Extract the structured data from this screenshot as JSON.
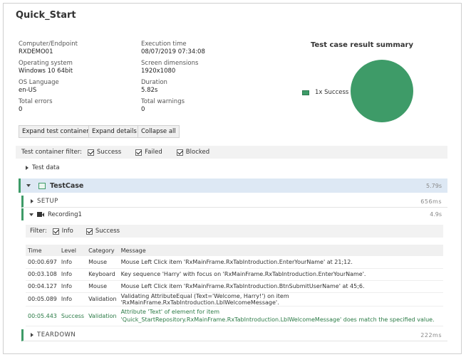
{
  "report": {
    "title": "Quick_Start",
    "info": [
      {
        "label": "Computer/Endpoint",
        "value": "RXDEMO01"
      },
      {
        "label": "Execution time",
        "value": "08/07/2019 07:34:08"
      },
      {
        "label": "Operating system",
        "value": "Windows 10 64bit"
      },
      {
        "label": "Screen dimensions",
        "value": "1920x1080"
      },
      {
        "label": "OS Language",
        "value": "en-US"
      },
      {
        "label": "Duration",
        "value": "5.82s"
      },
      {
        "label": "Total errors",
        "value": "0"
      },
      {
        "label": "Total warnings",
        "value": "0"
      }
    ]
  },
  "summary": {
    "title": "Test case result summary",
    "legend": "1x Success",
    "success_color": "#3e9b68",
    "success_count": 1
  },
  "buttons": {
    "expand_containers": "Expand test containers",
    "expand_details": "Expand details",
    "collapse_all": "Collapse all"
  },
  "container_filter": {
    "label": "Test container filter:",
    "options": [
      "Success",
      "Failed",
      "Blocked"
    ]
  },
  "test_data_label": "Test data",
  "testcase": {
    "name": "TestCase",
    "duration": "5.79s"
  },
  "setup": {
    "label": "SETUP",
    "duration": "656ms"
  },
  "recording": {
    "name": "Recording1",
    "duration": "4.9s"
  },
  "log_filter": {
    "label": "Filter:",
    "options": [
      "Info",
      "Success"
    ]
  },
  "log": {
    "headers": [
      "Time",
      "Level",
      "Category",
      "Message"
    ],
    "rows": [
      {
        "time": "00:00.697",
        "level": "Info",
        "category": "Mouse",
        "message": "Mouse Left Click item 'RxMainFrame.RxTabIntroduction.EnterYourName' at 21;12."
      },
      {
        "time": "00:03.108",
        "level": "Info",
        "category": "Keyboard",
        "message": "Key sequence 'Harry' with focus on 'RxMainFrame.RxTabIntroduction.EnterYourName'."
      },
      {
        "time": "00:04.127",
        "level": "Info",
        "category": "Mouse",
        "message": "Mouse Left Click item 'RxMainFrame.RxTabIntroduction.BtnSubmitUserName' at 45;6."
      },
      {
        "time": "00:05.089",
        "level": "Info",
        "category": "Validation",
        "message": "Validating AttributeEqual (Text='Welcome, Harry!') on item 'RxMainFrame.RxTabIntroduction.LblWelcomeMessage'."
      },
      {
        "time": "00:05.443",
        "level": "Success",
        "category": "Validation",
        "message": "Attribute 'Text' of element for item 'Quick_StartRepository.RxMainFrame.RxTabIntroduction.LblWelcomeMessage' does match the specified value."
      }
    ]
  },
  "teardown": {
    "label": "TEARDOWN",
    "duration": "222ms"
  }
}
